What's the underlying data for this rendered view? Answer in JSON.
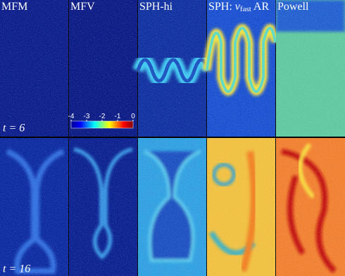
{
  "panels": [
    {
      "label": [
        "MFM"
      ]
    },
    {
      "label": [
        "MFV"
      ]
    },
    {
      "label": [
        "SPH-hi"
      ]
    },
    {
      "label": [
        "SPH: ",
        "v",
        "fast",
        " AR"
      ]
    },
    {
      "label": [
        "Powell"
      ]
    }
  ],
  "rows": [
    {
      "time_label": "t = 6"
    },
    {
      "time_label": "t = 16"
    }
  ],
  "colorbar": {
    "lim": [
      -4,
      0
    ],
    "ticks": [
      -4,
      -3,
      -2,
      -1,
      0
    ]
  }
}
